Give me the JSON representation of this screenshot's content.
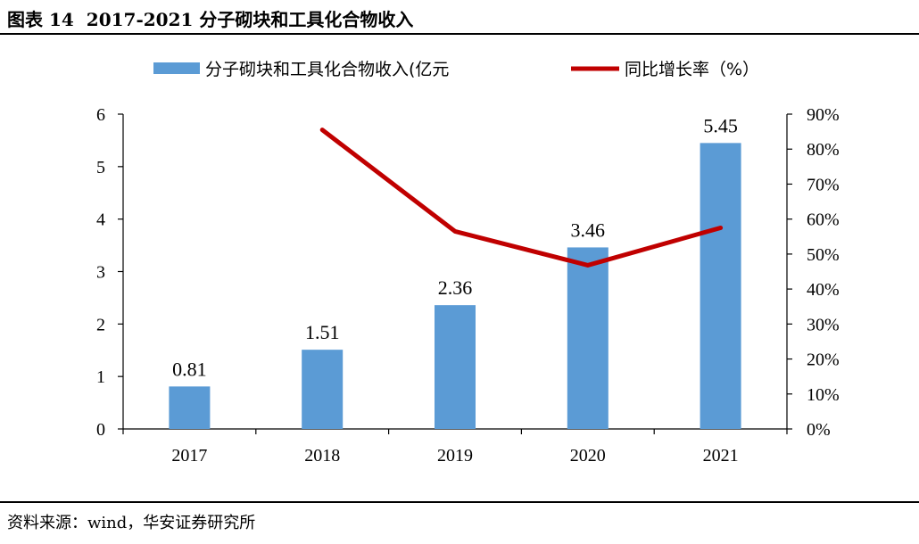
{
  "header": {
    "figure_label": "图表 14",
    "figure_title": "2017-2021 分子砌块和工具化合物收入"
  },
  "source": "资料来源：wind，华安证券研究所",
  "colors": {
    "bar": "#5b9bd5",
    "line": "#c00000",
    "axis": "#000000"
  },
  "chart_data": {
    "type": "bar+line",
    "categories": [
      "2017",
      "2018",
      "2019",
      "2020",
      "2021"
    ],
    "series": [
      {
        "name": "分子砌块和工具化合物收入(亿元",
        "type": "bar",
        "axis": "left",
        "values": [
          0.81,
          1.51,
          2.36,
          3.46,
          5.45
        ],
        "labels": [
          "0.81",
          "1.51",
          "2.36",
          "3.46",
          "5.45"
        ]
      },
      {
        "name": "同比增长率（%）",
        "type": "line",
        "axis": "right",
        "values": [
          null,
          85.5,
          56.5,
          46.8,
          57.5
        ]
      }
    ],
    "y_left": {
      "range": [
        0,
        6
      ],
      "ticks": [
        "0",
        "1",
        "2",
        "3",
        "4",
        "5",
        "6"
      ]
    },
    "y_right": {
      "range": [
        0,
        90
      ],
      "ticks": [
        "0%",
        "10%",
        "20%",
        "30%",
        "40%",
        "50%",
        "60%",
        "70%",
        "80%",
        "90%"
      ]
    },
    "legend_position": "top-center",
    "grid": false
  }
}
